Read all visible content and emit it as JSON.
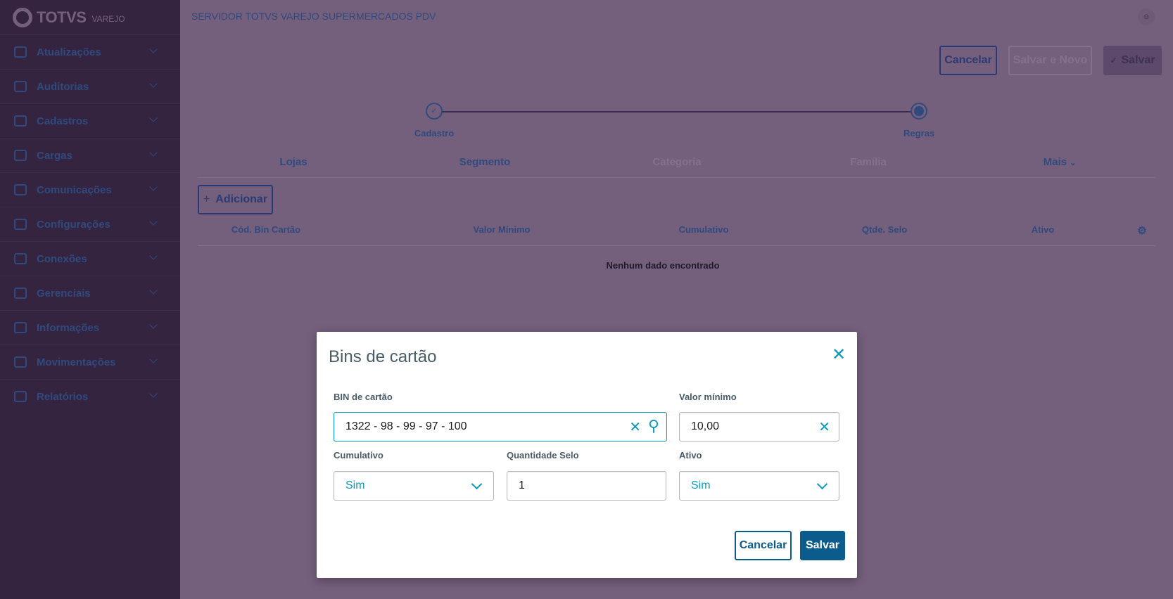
{
  "sidebar": {
    "logo": {
      "brand": "TOTVS",
      "sub": "VAREJO"
    },
    "items": [
      {
        "label": "Atualizações"
      },
      {
        "label": "Auditorias"
      },
      {
        "label": "Cadastros"
      },
      {
        "label": "Cargas"
      },
      {
        "label": "Comunicações"
      },
      {
        "label": "Configurações"
      },
      {
        "label": "Conexões"
      },
      {
        "label": "Gerenciais"
      },
      {
        "label": "Informações"
      },
      {
        "label": "Movimentações"
      },
      {
        "label": "Relatórios"
      }
    ]
  },
  "header": {
    "title": "SERVIDOR TOTVS VAREJO SUPERMERCADOS PDV",
    "user_icon": "user-icon"
  },
  "actions": {
    "cancel": "Cancelar",
    "save_new": "Salvar e Novo",
    "save": "Salvar"
  },
  "stepper": {
    "steps": [
      {
        "label": "Cadastro",
        "state": "done"
      },
      {
        "label": "Regras",
        "state": "active"
      }
    ]
  },
  "tabs": [
    {
      "label": "Lojas"
    },
    {
      "label": "Segmento"
    },
    {
      "label": "Categoria",
      "disabled": true
    },
    {
      "label": "Família",
      "disabled": true
    },
    {
      "label": "Mais"
    }
  ],
  "add_button": "Adicionar",
  "table": {
    "columns": [
      "Cód. Bin Cartão",
      "Valor Mínimo",
      "Cumulativo",
      "Qtde. Selo",
      "Ativo"
    ],
    "empty": "Nenhum dado encontrado"
  },
  "modal": {
    "title": "Bins de cartão",
    "fields": {
      "bin": {
        "label": "BIN de cartão",
        "value": "1322 - 98 - 99 - 97 - 100"
      },
      "valor": {
        "label": "Valor mínimo",
        "value": "10,00"
      },
      "cumulativo": {
        "label": "Cumulativo",
        "value": "Sim"
      },
      "qtde": {
        "label": "Quantidade Selo",
        "value": "1"
      },
      "ativo": {
        "label": "Ativo",
        "value": "Sim"
      }
    },
    "cancel": "Cancelar",
    "save": "Salvar"
  },
  "colors": {
    "accent": "#0c9abe",
    "primary": "#0b5c8c",
    "sidebar": "#35243f"
  }
}
